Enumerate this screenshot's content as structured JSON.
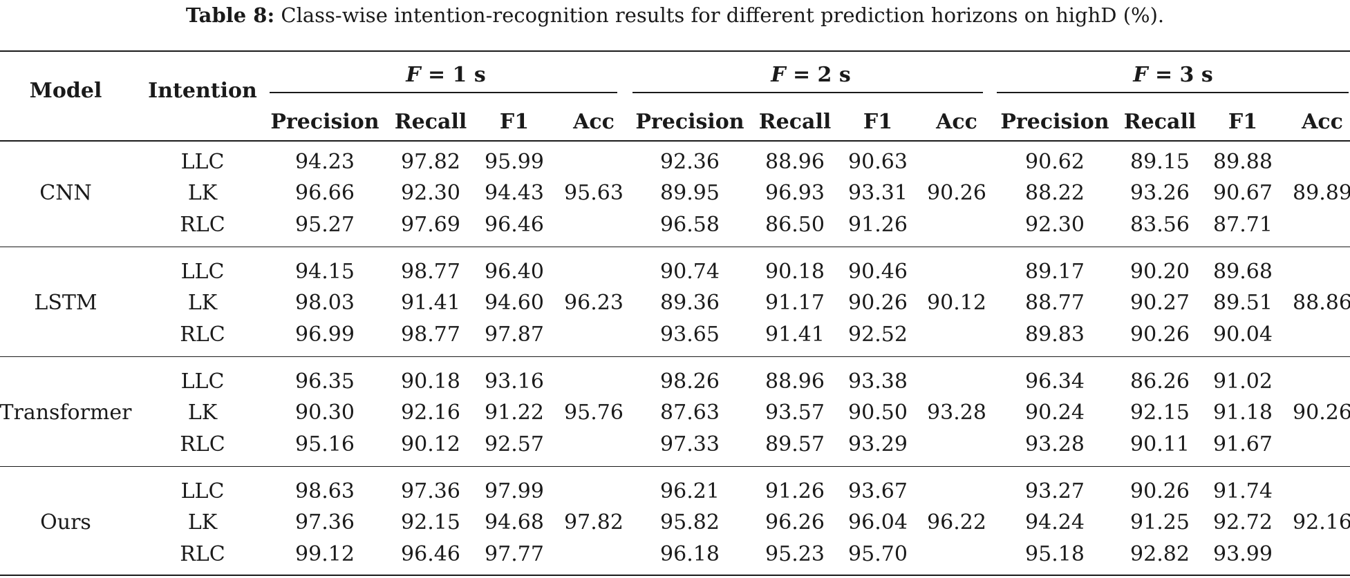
{
  "caption": {
    "label": "Table 8:",
    "text": "Class-wise intention-recognition results for different prediction horizons on highD (%)."
  },
  "headers": {
    "model": "Model",
    "intention": "Intention",
    "groups": [
      {
        "var": "F",
        "rest": " = 1 s"
      },
      {
        "var": "F",
        "rest": " = 2 s"
      },
      {
        "var": "F",
        "rest": " = 3 s"
      }
    ],
    "metrics": [
      "Precision",
      "Recall",
      "F1",
      "Acc"
    ]
  },
  "models": [
    {
      "name": "CNN",
      "rows": [
        {
          "intention": "LLC",
          "vals": [
            [
              "94.23",
              "97.82",
              "95.99"
            ],
            [
              "92.36",
              "88.96",
              "90.63"
            ],
            [
              "90.62",
              "89.15",
              "89.88"
            ]
          ]
        },
        {
          "intention": "LK",
          "vals": [
            [
              "96.66",
              "92.30",
              "94.43"
            ],
            [
              "89.95",
              "96.93",
              "93.31"
            ],
            [
              "88.22",
              "93.26",
              "90.67"
            ]
          ]
        },
        {
          "intention": "RLC",
          "vals": [
            [
              "95.27",
              "97.69",
              "96.46"
            ],
            [
              "96.58",
              "86.50",
              "91.26"
            ],
            [
              "92.30",
              "83.56",
              "87.71"
            ]
          ]
        }
      ],
      "acc": [
        "95.63",
        "90.26",
        "89.89"
      ]
    },
    {
      "name": "LSTM",
      "rows": [
        {
          "intention": "LLC",
          "vals": [
            [
              "94.15",
              "98.77",
              "96.40"
            ],
            [
              "90.74",
              "90.18",
              "90.46"
            ],
            [
              "89.17",
              "90.20",
              "89.68"
            ]
          ]
        },
        {
          "intention": "LK",
          "vals": [
            [
              "98.03",
              "91.41",
              "94.60"
            ],
            [
              "89.36",
              "91.17",
              "90.26"
            ],
            [
              "88.77",
              "90.27",
              "89.51"
            ]
          ]
        },
        {
          "intention": "RLC",
          "vals": [
            [
              "96.99",
              "98.77",
              "97.87"
            ],
            [
              "93.65",
              "91.41",
              "92.52"
            ],
            [
              "89.83",
              "90.26",
              "90.04"
            ]
          ]
        }
      ],
      "acc": [
        "96.23",
        "90.12",
        "88.86"
      ]
    },
    {
      "name": "Transformer",
      "rows": [
        {
          "intention": "LLC",
          "vals": [
            [
              "96.35",
              "90.18",
              "93.16"
            ],
            [
              "98.26",
              "88.96",
              "93.38"
            ],
            [
              "96.34",
              "86.26",
              "91.02"
            ]
          ]
        },
        {
          "intention": "LK",
          "vals": [
            [
              "90.30",
              "92.16",
              "91.22"
            ],
            [
              "87.63",
              "93.57",
              "90.50"
            ],
            [
              "90.24",
              "92.15",
              "91.18"
            ]
          ]
        },
        {
          "intention": "RLC",
          "vals": [
            [
              "95.16",
              "90.12",
              "92.57"
            ],
            [
              "97.33",
              "89.57",
              "93.29"
            ],
            [
              "93.28",
              "90.11",
              "91.67"
            ]
          ]
        }
      ],
      "acc": [
        "95.76",
        "93.28",
        "90.26"
      ]
    },
    {
      "name": "Ours",
      "rows": [
        {
          "intention": "LLC",
          "vals": [
            [
              "98.63",
              "97.36",
              "97.99"
            ],
            [
              "96.21",
              "91.26",
              "93.67"
            ],
            [
              "93.27",
              "90.26",
              "91.74"
            ]
          ]
        },
        {
          "intention": "LK",
          "vals": [
            [
              "97.36",
              "92.15",
              "94.68"
            ],
            [
              "95.82",
              "96.26",
              "96.04"
            ],
            [
              "94.24",
              "91.25",
              "92.72"
            ]
          ]
        },
        {
          "intention": "RLC",
          "vals": [
            [
              "99.12",
              "96.46",
              "97.77"
            ],
            [
              "96.18",
              "95.23",
              "95.70"
            ],
            [
              "95.18",
              "92.82",
              "93.99"
            ]
          ]
        }
      ],
      "acc": [
        "97.82",
        "96.22",
        "92.16"
      ]
    }
  ]
}
